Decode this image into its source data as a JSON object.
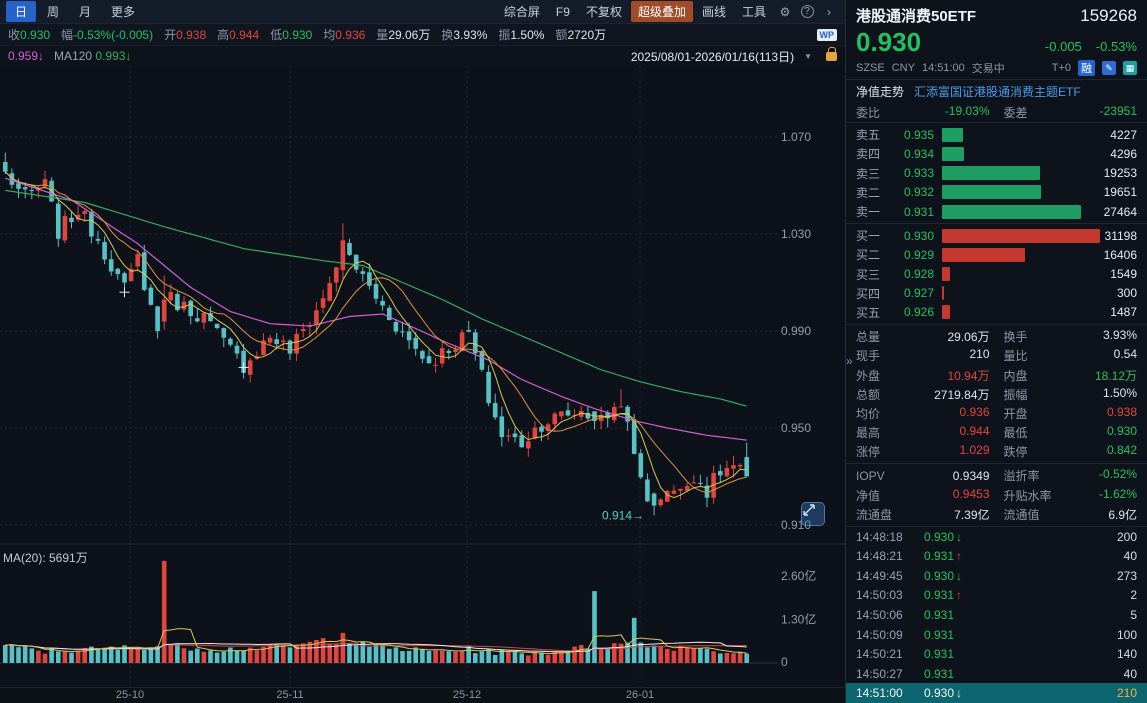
{
  "colors": {
    "up_red": "#e0453e",
    "down_green": "#1fc25f",
    "candle_teal": "#56c2c5",
    "ma_yellow": "#d9c94f",
    "ma_orange": "#e0923f",
    "ma_magenta": "#cf5fd3",
    "ma_green": "#3aa85a",
    "accent_blue": "#2563c9",
    "highlight_teal": "#0d6570",
    "overlay_button": "#a14b28",
    "annotation_teal": "#4fd0c8"
  },
  "toolbar": {
    "period_tabs": [
      {
        "key": "day",
        "label": "日",
        "active": true
      },
      {
        "key": "week",
        "label": "周",
        "active": false
      },
      {
        "key": "month",
        "label": "月",
        "active": false
      },
      {
        "key": "more",
        "label": "更多",
        "active": false
      }
    ],
    "menu_items": [
      {
        "key": "composite-screen",
        "label": "综合屏",
        "highlight": false
      },
      {
        "key": "f9",
        "label": "F9",
        "highlight": false
      },
      {
        "key": "no-adjust",
        "label": "不复权",
        "highlight": false
      },
      {
        "key": "super-overlay",
        "label": "超级叠加",
        "highlight": true
      },
      {
        "key": "draw-line",
        "label": "画线",
        "highlight": false
      },
      {
        "key": "tools",
        "label": "工具",
        "highlight": false
      }
    ],
    "gear_icon": "⚙",
    "help_icon": "?",
    "chevron_icon": "›"
  },
  "stats_row": {
    "items": [
      {
        "label": "收",
        "value": "0.930",
        "c": "green"
      },
      {
        "label": "幅",
        "value": "-0.53%(-0.005)",
        "c": "green"
      },
      {
        "label": "开",
        "value": "0.938",
        "c": "red"
      },
      {
        "label": "高",
        "value": "0.944",
        "c": "red"
      },
      {
        "label": "低",
        "value": "0.930",
        "c": "green"
      },
      {
        "label": "均",
        "value": "0.936",
        "c": "red"
      },
      {
        "label": "量",
        "value": "29.06万",
        "c": "white"
      },
      {
        "label": "换",
        "value": "3.93%",
        "c": "white"
      },
      {
        "label": "振",
        "value": "1.50%",
        "c": "white"
      },
      {
        "label": "额",
        "value": "2720万",
        "c": "white"
      }
    ],
    "logo": "WP"
  },
  "ma_row": {
    "ma60": "0.959↓",
    "ma120_label": "MA120",
    "ma120": "0.993↓",
    "date_range": "2025/08/01-2026/01/16(113日)",
    "caret": "▼"
  },
  "chart_data": {
    "type": "candlestick",
    "title": "港股通消费50ETF 日K",
    "days": 113,
    "date_range": "2025/08/01-2026/01/16",
    "price_ticks": [
      {
        "label": "1.070",
        "value": 1.07
      },
      {
        "label": "1.030",
        "value": 1.03
      },
      {
        "label": "0.990",
        "value": 0.99
      },
      {
        "label": "0.950",
        "value": 0.95
      },
      {
        "label": "0.910",
        "value": 0.91
      }
    ],
    "volume_ticks": [
      {
        "label": "2.60亿",
        "value": 2.6
      },
      {
        "label": "1.30亿",
        "value": 1.3
      },
      {
        "label": "0",
        "value": 0
      }
    ],
    "volume_ma_label": "MA(20): 5691万",
    "x_labels": [
      {
        "label": "25-10",
        "xf": 0.154
      },
      {
        "label": "25-11",
        "xf": 0.343
      },
      {
        "label": "25-12",
        "xf": 0.553
      },
      {
        "label": "26-01",
        "xf": 0.757
      }
    ],
    "last_candle": {
      "open": 0.938,
      "high": 0.944,
      "low": 0.93,
      "close": 0.93
    },
    "low_annotation": {
      "day": 98,
      "price": 0.914,
      "text": "0.914→"
    },
    "cross_markers": [
      [
        18,
        1.006
      ],
      [
        36,
        0.975
      ]
    ],
    "close_anchors": [
      [
        0,
        1.055
      ],
      [
        3,
        1.045
      ],
      [
        6,
        1.05
      ],
      [
        8,
        1.031
      ],
      [
        11,
        1.04
      ],
      [
        14,
        1.028
      ],
      [
        18,
        1.007
      ],
      [
        20,
        1.02
      ],
      [
        23,
        0.99
      ],
      [
        24,
        1.005
      ],
      [
        27,
        1.0
      ],
      [
        30,
        0.996
      ],
      [
        33,
        0.985
      ],
      [
        36,
        0.976
      ],
      [
        40,
        0.988
      ],
      [
        43,
        0.982
      ],
      [
        48,
        1.003
      ],
      [
        51,
        1.025
      ],
      [
        54,
        1.012
      ],
      [
        57,
        1.0
      ],
      [
        60,
        0.989
      ],
      [
        64,
        0.977
      ],
      [
        68,
        0.985
      ],
      [
        70,
        0.989
      ],
      [
        73,
        0.962
      ],
      [
        75,
        0.947
      ],
      [
        78,
        0.944
      ],
      [
        81,
        0.952
      ],
      [
        84,
        0.955
      ],
      [
        87,
        0.957
      ],
      [
        90,
        0.953
      ],
      [
        92,
        0.958
      ],
      [
        93,
        0.962
      ],
      [
        95,
        0.938
      ],
      [
        97,
        0.922
      ],
      [
        98,
        0.918
      ],
      [
        100,
        0.926
      ],
      [
        102,
        0.923
      ],
      [
        104,
        0.931
      ],
      [
        106,
        0.924
      ],
      [
        108,
        0.932
      ],
      [
        110,
        0.934
      ],
      [
        112,
        0.93
      ]
    ],
    "ma_magenta_anchors": [
      [
        0,
        1.053
      ],
      [
        10,
        1.044
      ],
      [
        20,
        1.026
      ],
      [
        28,
        1.008
      ],
      [
        34,
        0.998
      ],
      [
        40,
        0.993
      ],
      [
        46,
        0.992
      ],
      [
        52,
        0.996
      ],
      [
        57,
        0.997
      ],
      [
        62,
        0.991
      ],
      [
        66,
        0.986
      ],
      [
        73,
        0.978
      ],
      [
        78,
        0.97
      ],
      [
        84,
        0.963
      ],
      [
        89,
        0.958
      ],
      [
        95,
        0.953
      ],
      [
        100,
        0.95
      ],
      [
        106,
        0.947
      ],
      [
        112,
        0.945
      ]
    ],
    "ma_green_anchors": [
      [
        0,
        1.048
      ],
      [
        12,
        1.043
      ],
      [
        24,
        1.033
      ],
      [
        36,
        1.024
      ],
      [
        48,
        1.019
      ],
      [
        54,
        1.017
      ],
      [
        60,
        1.01
      ],
      [
        66,
        1.003
      ],
      [
        72,
        0.995
      ],
      [
        78,
        0.988
      ],
      [
        84,
        0.981
      ],
      [
        90,
        0.974
      ],
      [
        96,
        0.969
      ],
      [
        102,
        0.965
      ],
      [
        108,
        0.962
      ],
      [
        112,
        0.959
      ]
    ],
    "volume_anchors": [
      [
        0,
        0.5
      ],
      [
        6,
        0.35
      ],
      [
        12,
        0.4
      ],
      [
        18,
        0.45
      ],
      [
        22,
        0.5
      ],
      [
        26,
        0.5
      ],
      [
        32,
        0.4
      ],
      [
        38,
        0.45
      ],
      [
        44,
        0.5
      ],
      [
        48,
        0.7
      ],
      [
        52,
        0.6
      ],
      [
        58,
        0.45
      ],
      [
        64,
        0.35
      ],
      [
        70,
        0.4
      ],
      [
        76,
        0.3
      ],
      [
        82,
        0.32
      ],
      [
        87,
        0.45
      ],
      [
        92,
        0.55
      ],
      [
        96,
        0.6
      ],
      [
        100,
        0.45
      ],
      [
        104,
        0.5
      ],
      [
        108,
        0.35
      ],
      [
        112,
        0.28
      ]
    ],
    "volume_spikes": [
      [
        24,
        3.05
      ],
      [
        51,
        0.9
      ],
      [
        89,
        2.15
      ],
      [
        95,
        1.35
      ]
    ]
  },
  "quote_panel": {
    "name": "港股通消费50ETF",
    "code": "159268",
    "last": "0.930",
    "change": "-0.005",
    "change_pct": "-0.53%",
    "exchange": "SZSE",
    "currency": "CNY",
    "time": "14:51:00",
    "status": "交易中",
    "t_plus": "T+0",
    "margin_badge": "融",
    "icons": {
      "edit": "✎",
      "grid": "▦",
      "handle": "»"
    },
    "nav_label": "净值走势",
    "fund_name": "汇添富国证港股通消费主题ETF",
    "weibi_row": [
      [
        {
          "l": "委比",
          "v": "-19.03%",
          "c": "green"
        },
        {
          "l": "委差",
          "v": "-23951",
          "c": "green"
        }
      ]
    ],
    "orderbook": {
      "max_size": 31198,
      "sell": [
        {
          "label": "卖五",
          "price": "0.935",
          "size": "4227"
        },
        {
          "label": "卖四",
          "price": "0.934",
          "size": "4296"
        },
        {
          "label": "卖三",
          "price": "0.933",
          "size": "19253"
        },
        {
          "label": "卖二",
          "price": "0.932",
          "size": "19651"
        },
        {
          "label": "卖一",
          "price": "0.931",
          "size": "27464"
        }
      ],
      "buy": [
        {
          "label": "买一",
          "price": "0.930",
          "size": "31198"
        },
        {
          "label": "买二",
          "price": "0.929",
          "size": "16406"
        },
        {
          "label": "买三",
          "price": "0.928",
          "size": "1549"
        },
        {
          "label": "买四",
          "price": "0.927",
          "size": "300"
        },
        {
          "label": "买五",
          "price": "0.926",
          "size": "1487"
        }
      ]
    },
    "stats": [
      [
        {
          "l": "总量",
          "v": "29.06万",
          "c": "white"
        },
        {
          "l": "换手",
          "v": "3.93%",
          "c": "white"
        }
      ],
      [
        {
          "l": "现手",
          "v": "210",
          "c": "white"
        },
        {
          "l": "量比",
          "v": "0.54",
          "c": "white"
        }
      ],
      [
        {
          "l": "外盘",
          "v": "10.94万",
          "c": "red"
        },
        {
          "l": "内盘",
          "v": "18.12万",
          "c": "green"
        }
      ],
      [
        {
          "l": "总额",
          "v": "2719.84万",
          "c": "white"
        },
        {
          "l": "振幅",
          "v": "1.50%",
          "c": "white"
        }
      ],
      [
        {
          "l": "均价",
          "v": "0.936",
          "c": "red"
        },
        {
          "l": "开盘",
          "v": "0.938",
          "c": "red"
        }
      ],
      [
        {
          "l": "最高",
          "v": "0.944",
          "c": "red"
        },
        {
          "l": "最低",
          "v": "0.930",
          "c": "green"
        }
      ],
      [
        {
          "l": "涨停",
          "v": "1.029",
          "c": "red"
        },
        {
          "l": "跌停",
          "v": "0.842",
          "c": "green"
        }
      ]
    ],
    "valuation": [
      [
        {
          "l": "IOPV",
          "v": "0.9349",
          "c": "white"
        },
        {
          "l": "溢折率",
          "v": "-0.52%",
          "c": "green"
        }
      ],
      [
        {
          "l": "净值",
          "v": "0.9453",
          "c": "red"
        },
        {
          "l": "升贴水率",
          "v": "-1.62%",
          "c": "green"
        }
      ],
      [
        {
          "l": "流通盘",
          "v": "7.39亿",
          "c": "white"
        },
        {
          "l": "流通值",
          "v": "6.9亿",
          "c": "white"
        }
      ]
    ],
    "ticks": [
      {
        "time": "14:48:18",
        "price": "0.930",
        "dir": "down",
        "vol": "200",
        "highlight": false
      },
      {
        "time": "14:48:21",
        "price": "0.931",
        "dir": "up",
        "vol": "40",
        "highlight": false
      },
      {
        "time": "14:49:45",
        "price": "0.930",
        "dir": "down",
        "vol": "273",
        "highlight": false
      },
      {
        "time": "14:50:03",
        "price": "0.931",
        "dir": "up",
        "vol": "2",
        "highlight": false
      },
      {
        "time": "14:50:06",
        "price": "0.931",
        "dir": "",
        "vol": "5",
        "highlight": false
      },
      {
        "time": "14:50:09",
        "price": "0.931",
        "dir": "",
        "vol": "100",
        "highlight": false
      },
      {
        "time": "14:50:21",
        "price": "0.931",
        "dir": "",
        "vol": "140",
        "highlight": false
      },
      {
        "time": "14:50:27",
        "price": "0.931",
        "dir": "",
        "vol": "40",
        "highlight": false
      },
      {
        "time": "14:51:00",
        "price": "0.930",
        "dir": "down",
        "vol": "210",
        "highlight": true
      }
    ]
  }
}
